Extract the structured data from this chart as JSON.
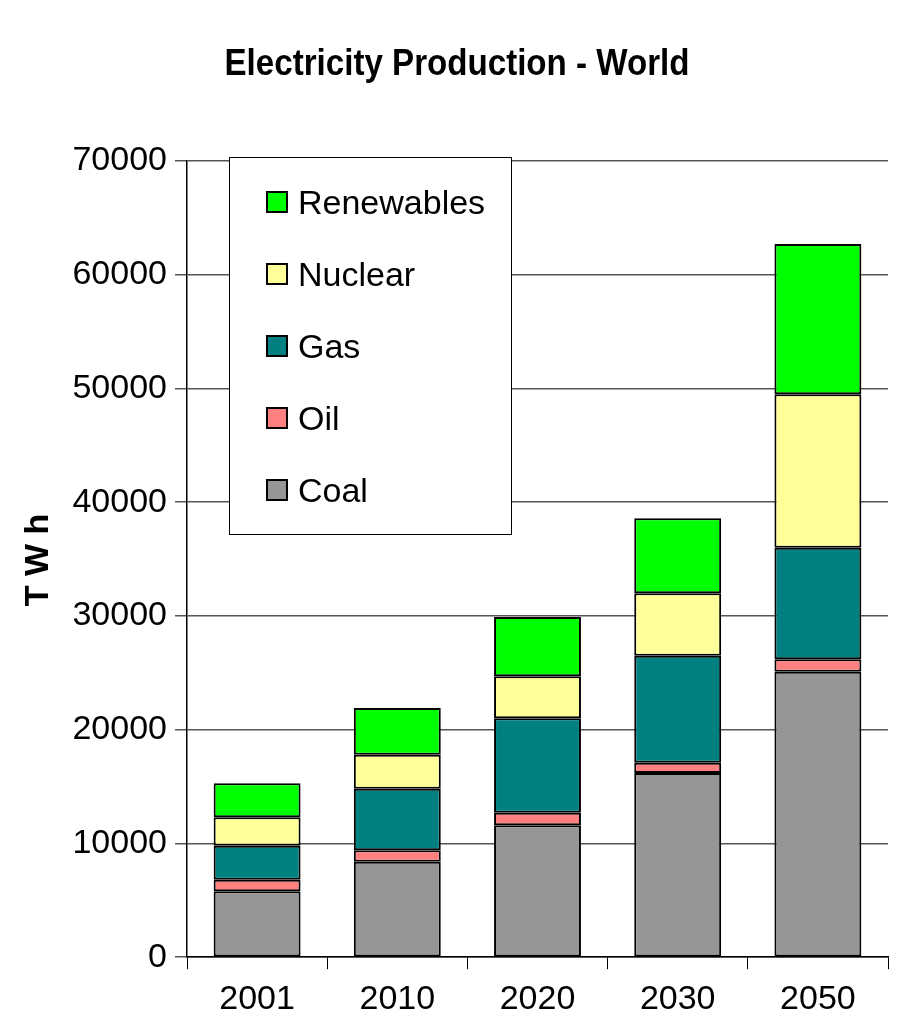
{
  "chart_data": {
    "type": "bar",
    "title": "Electricity Production - World",
    "ylabel": "T W h",
    "categories": [
      "2001",
      "2010",
      "2020",
      "2030",
      "2050"
    ],
    "stacked": true,
    "series": [
      {
        "name": "Coal",
        "color": "#969696",
        "values": [
          5800,
          8400,
          11600,
          16200,
          25100
        ]
      },
      {
        "name": "Oil",
        "color": "#ff8080",
        "values": [
          1000,
          1000,
          1100,
          900,
          1100
        ]
      },
      {
        "name": "Gas",
        "color": "#008080",
        "values": [
          3000,
          5400,
          8300,
          9400,
          9800
        ]
      },
      {
        "name": "Nuclear",
        "color": "#ffff99",
        "values": [
          2500,
          3000,
          3700,
          5500,
          13500
        ]
      },
      {
        "name": "Renewables",
        "color": "#00ff00",
        "values": [
          3000,
          4100,
          5200,
          6600,
          13200
        ]
      }
    ],
    "ylim": [
      0,
      70000
    ],
    "yticks": [
      0,
      10000,
      20000,
      30000,
      40000,
      50000,
      60000,
      70000
    ],
    "grid": "y",
    "legend": "top left"
  }
}
